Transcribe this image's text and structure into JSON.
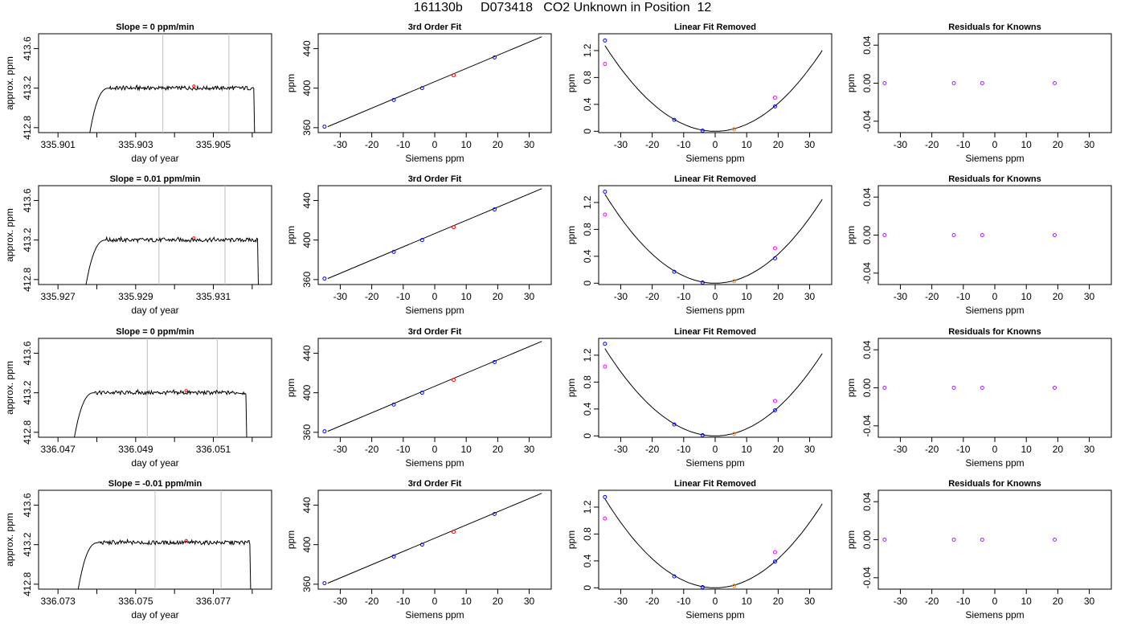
{
  "figure_title": "161130b     D073418   CO2 Unknown in Position  12",
  "colors": {
    "line": "#000000",
    "vertical_marker": "#bebebe",
    "known_point": "#0000ff",
    "unknown_point": "#ff0000",
    "unknown_point_residual": "#ff7f00",
    "raw_point": "#ff00ff",
    "residual_point": "#a020f0"
  },
  "chart_data": [
    {
      "type": "line",
      "row": 1,
      "title": "Slope =  0  ppm/min",
      "xlabel": "day of year",
      "ylabel": "approx. ppm",
      "x_ticks": [
        "335.901",
        "335.903",
        "335.905"
      ],
      "x_minor_ticks": [
        335.902,
        335.904,
        335.906
      ],
      "y_ticks": [
        "412.8",
        "413.2",
        "413.6"
      ],
      "xlim": [
        335.9005,
        335.9065
      ],
      "ylim": [
        412.75,
        413.75
      ],
      "start": 335.9018,
      "end": 335.9061,
      "plateau": 413.22,
      "vlines": [
        335.9037,
        335.9054
      ],
      "marker": {
        "x": 335.9045,
        "y": 413.22
      }
    },
    {
      "type": "scatter",
      "row": 1,
      "title": "3rd Order Fit",
      "xlabel": "Siemens ppm",
      "ylabel": "ppm",
      "x_ticks": [
        -30,
        -20,
        -10,
        0,
        10,
        20,
        30
      ],
      "y_ticks": [
        360,
        400,
        440
      ],
      "xlim": [
        -37,
        37
      ],
      "ylim": [
        355,
        455
      ],
      "fit_line": [
        [
          -34,
          361
        ],
        [
          34,
          452
        ]
      ],
      "points": [
        {
          "x": -35,
          "y": 361,
          "kind": "known"
        },
        {
          "x": -13,
          "y": 388,
          "kind": "known"
        },
        {
          "x": -4,
          "y": 400,
          "kind": "known"
        },
        {
          "x": 6,
          "y": 413,
          "kind": "unknown"
        },
        {
          "x": 19,
          "y": 431,
          "kind": "known"
        }
      ]
    },
    {
      "type": "scatter",
      "row": 1,
      "title": "Linear Fit Removed",
      "xlabel": "Siemens ppm",
      "ylabel": "ppm",
      "x_ticks": [
        -30,
        -20,
        -10,
        0,
        10,
        20,
        30
      ],
      "y_ticks": [
        0.0,
        0.4,
        0.8,
        1.2
      ],
      "xlim": [
        -37,
        37
      ],
      "ylim": [
        -0.02,
        1.45
      ],
      "curve": {
        "a": 0.00104,
        "h": 0,
        "xmin": -35,
        "xmax": 34
      },
      "points": [
        {
          "x": -35,
          "y": 1.35,
          "kind": "known"
        },
        {
          "x": -35,
          "y": 1.0,
          "kind": "raw"
        },
        {
          "x": -13,
          "y": 0.17,
          "kind": "known"
        },
        {
          "x": -4,
          "y": 0.01,
          "kind": "known"
        },
        {
          "x": 6,
          "y": 0.03,
          "kind": "unknown_residual"
        },
        {
          "x": 19,
          "y": 0.37,
          "kind": "known"
        },
        {
          "x": 19,
          "y": 0.5,
          "kind": "raw"
        }
      ]
    },
    {
      "type": "scatter",
      "row": 1,
      "title": "Residuals for Knowns",
      "xlabel": "Siemens ppm",
      "ylabel": "ppm",
      "x_ticks": [
        -30,
        -20,
        -10,
        0,
        10,
        20,
        30
      ],
      "y_ticks": [
        "-0.04",
        "0.00",
        "0.04"
      ],
      "xlim": [
        -37,
        37
      ],
      "ylim": [
        -0.052,
        0.052
      ],
      "points": [
        {
          "x": -35,
          "y": 0,
          "kind": "residual"
        },
        {
          "x": -13,
          "y": 0,
          "kind": "residual"
        },
        {
          "x": -4,
          "y": 0,
          "kind": "residual"
        },
        {
          "x": 19,
          "y": 0,
          "kind": "residual"
        }
      ]
    },
    {
      "type": "line",
      "row": 2,
      "title": "Slope =  0.01  ppm/min",
      "xlabel": "day of year",
      "ylabel": "approx. ppm",
      "x_ticks": [
        "335.927",
        "335.929",
        "335.931"
      ],
      "x_minor_ticks": [
        335.928,
        335.93,
        335.932
      ],
      "y_ticks": [
        "412.8",
        "413.2",
        "413.6"
      ],
      "xlim": [
        335.9265,
        335.9325
      ],
      "ylim": [
        412.75,
        413.75
      ],
      "start": 335.9277,
      "end": 335.9322,
      "plateau": 413.22,
      "vlines": [
        335.9296,
        335.9313
      ],
      "marker": {
        "x": 335.9305,
        "y": 413.22
      }
    },
    {
      "type": "scatter",
      "row": 2,
      "title": "3rd Order Fit",
      "xlabel": "Siemens ppm",
      "ylabel": "ppm",
      "x_ticks": [
        -30,
        -20,
        -10,
        0,
        10,
        20,
        30
      ],
      "y_ticks": [
        360,
        400,
        440
      ],
      "xlim": [
        -37,
        37
      ],
      "ylim": [
        355,
        455
      ],
      "fit_line": [
        [
          -34,
          361
        ],
        [
          34,
          452
        ]
      ],
      "points": [
        {
          "x": -35,
          "y": 361,
          "kind": "known"
        },
        {
          "x": -13,
          "y": 388,
          "kind": "known"
        },
        {
          "x": -4,
          "y": 400,
          "kind": "known"
        },
        {
          "x": 6,
          "y": 413,
          "kind": "unknown"
        },
        {
          "x": 19,
          "y": 431,
          "kind": "known"
        }
      ]
    },
    {
      "type": "scatter",
      "row": 2,
      "title": "Linear Fit Removed",
      "xlabel": "Siemens ppm",
      "ylabel": "ppm",
      "x_ticks": [
        -30,
        -20,
        -10,
        0,
        10,
        20,
        30
      ],
      "y_ticks": [
        0.0,
        0.4,
        0.8,
        1.2
      ],
      "xlim": [
        -37,
        37
      ],
      "ylim": [
        -0.02,
        1.45
      ],
      "curve": {
        "a": 0.00108,
        "h": 0,
        "xmin": -35,
        "xmax": 34
      },
      "points": [
        {
          "x": -35,
          "y": 1.36,
          "kind": "known"
        },
        {
          "x": -35,
          "y": 1.02,
          "kind": "raw"
        },
        {
          "x": -13,
          "y": 0.17,
          "kind": "known"
        },
        {
          "x": -4,
          "y": 0.01,
          "kind": "known"
        },
        {
          "x": 6,
          "y": 0.03,
          "kind": "unknown_residual"
        },
        {
          "x": 19,
          "y": 0.37,
          "kind": "known"
        },
        {
          "x": 19,
          "y": 0.52,
          "kind": "raw"
        }
      ]
    },
    {
      "type": "scatter",
      "row": 2,
      "title": "Residuals for Knowns",
      "xlabel": "Siemens ppm",
      "ylabel": "ppm",
      "x_ticks": [
        -30,
        -20,
        -10,
        0,
        10,
        20,
        30
      ],
      "y_ticks": [
        "-0.04",
        "0.00",
        "0.04"
      ],
      "xlim": [
        -37,
        37
      ],
      "ylim": [
        -0.052,
        0.052
      ],
      "points": [
        {
          "x": -35,
          "y": 0,
          "kind": "residual"
        },
        {
          "x": -13,
          "y": 0,
          "kind": "residual"
        },
        {
          "x": -4,
          "y": 0,
          "kind": "residual"
        },
        {
          "x": 19,
          "y": 0,
          "kind": "residual"
        }
      ]
    },
    {
      "type": "line",
      "row": 3,
      "title": "Slope =  0  ppm/min",
      "xlabel": "day of year",
      "ylabel": "approx. ppm",
      "x_ticks": [
        "336.047",
        "336.049",
        "336.051"
      ],
      "x_minor_ticks": [
        336.048,
        336.05,
        336.052
      ],
      "y_ticks": [
        "412.8",
        "413.2",
        "413.6"
      ],
      "xlim": [
        336.0465,
        336.0525
      ],
      "ylim": [
        412.75,
        413.75
      ],
      "start": 336.0474,
      "end": 336.0519,
      "plateau": 413.22,
      "vlines": [
        336.0493,
        336.0511
      ],
      "marker": {
        "x": 336.0503,
        "y": 413.22
      }
    },
    {
      "type": "scatter",
      "row": 3,
      "title": "3rd Order Fit",
      "xlabel": "Siemens ppm",
      "ylabel": "ppm",
      "x_ticks": [
        -30,
        -20,
        -10,
        0,
        10,
        20,
        30
      ],
      "y_ticks": [
        360,
        400,
        440
      ],
      "xlim": [
        -37,
        37
      ],
      "ylim": [
        355,
        455
      ],
      "fit_line": [
        [
          -34,
          361
        ],
        [
          34,
          452
        ]
      ],
      "points": [
        {
          "x": -35,
          "y": 361,
          "kind": "known"
        },
        {
          "x": -13,
          "y": 388,
          "kind": "known"
        },
        {
          "x": -4,
          "y": 400,
          "kind": "known"
        },
        {
          "x": 6,
          "y": 413,
          "kind": "unknown"
        },
        {
          "x": 19,
          "y": 431,
          "kind": "known"
        }
      ]
    },
    {
      "type": "scatter",
      "row": 3,
      "title": "Linear Fit Removed",
      "xlabel": "Siemens ppm",
      "ylabel": "ppm",
      "x_ticks": [
        -30,
        -20,
        -10,
        0,
        10,
        20,
        30
      ],
      "y_ticks": [
        0.0,
        0.4,
        0.8,
        1.2
      ],
      "xlim": [
        -37,
        37
      ],
      "ylim": [
        -0.02,
        1.45
      ],
      "curve": {
        "a": 0.00106,
        "h": 0,
        "xmin": -35,
        "xmax": 34
      },
      "points": [
        {
          "x": -35,
          "y": 1.37,
          "kind": "known"
        },
        {
          "x": -35,
          "y": 1.03,
          "kind": "raw"
        },
        {
          "x": -13,
          "y": 0.17,
          "kind": "known"
        },
        {
          "x": -4,
          "y": 0.01,
          "kind": "known"
        },
        {
          "x": 6,
          "y": 0.03,
          "kind": "unknown_residual"
        },
        {
          "x": 19,
          "y": 0.38,
          "kind": "known"
        },
        {
          "x": 19,
          "y": 0.52,
          "kind": "raw"
        }
      ]
    },
    {
      "type": "scatter",
      "row": 3,
      "title": "Residuals for Knowns",
      "xlabel": "Siemens ppm",
      "ylabel": "ppm",
      "x_ticks": [
        -30,
        -20,
        -10,
        0,
        10,
        20,
        30
      ],
      "y_ticks": [
        "-0.04",
        "0.00",
        "0.04"
      ],
      "xlim": [
        -37,
        37
      ],
      "ylim": [
        -0.052,
        0.052
      ],
      "points": [
        {
          "x": -35,
          "y": 0,
          "kind": "residual"
        },
        {
          "x": -13,
          "y": 0,
          "kind": "residual"
        },
        {
          "x": -4,
          "y": 0,
          "kind": "residual"
        },
        {
          "x": 19,
          "y": 0,
          "kind": "residual"
        }
      ]
    },
    {
      "type": "line",
      "row": 4,
      "title": "Slope =  -0.01  ppm/min",
      "xlabel": "day of year",
      "ylabel": "approx. ppm",
      "x_ticks": [
        "336.073",
        "336.075",
        "336.077"
      ],
      "x_minor_ticks": [
        336.074,
        336.076,
        336.078
      ],
      "y_ticks": [
        "412.8",
        "413.2",
        "413.6"
      ],
      "xlim": [
        336.0725,
        336.0785
      ],
      "ylim": [
        412.75,
        413.75
      ],
      "start": 336.0735,
      "end": 336.078,
      "plateau": 413.24,
      "vlines": [
        336.0755,
        336.0772
      ],
      "marker": {
        "x": 336.0763,
        "y": 413.24
      }
    },
    {
      "type": "scatter",
      "row": 4,
      "title": "3rd Order Fit",
      "xlabel": "Siemens ppm",
      "ylabel": "ppm",
      "x_ticks": [
        -30,
        -20,
        -10,
        0,
        10,
        20,
        30
      ],
      "y_ticks": [
        360,
        400,
        440
      ],
      "xlim": [
        -37,
        37
      ],
      "ylim": [
        355,
        455
      ],
      "fit_line": [
        [
          -34,
          361
        ],
        [
          34,
          452
        ]
      ],
      "points": [
        {
          "x": -35,
          "y": 361,
          "kind": "known"
        },
        {
          "x": -13,
          "y": 388,
          "kind": "known"
        },
        {
          "x": -4,
          "y": 400,
          "kind": "known"
        },
        {
          "x": 6,
          "y": 413,
          "kind": "unknown"
        },
        {
          "x": 19,
          "y": 431,
          "kind": "known"
        }
      ]
    },
    {
      "type": "scatter",
      "row": 4,
      "title": "Linear Fit Removed",
      "xlabel": "Siemens ppm",
      "ylabel": "ppm",
      "x_ticks": [
        -30,
        -20,
        -10,
        0,
        10,
        20,
        30
      ],
      "y_ticks": [
        0.0,
        0.4,
        0.8,
        1.2
      ],
      "xlim": [
        -37,
        37
      ],
      "ylim": [
        -0.02,
        1.45
      ],
      "curve": {
        "a": 0.00108,
        "h": 0,
        "xmin": -35,
        "xmax": 34
      },
      "points": [
        {
          "x": -35,
          "y": 1.35,
          "kind": "known"
        },
        {
          "x": -35,
          "y": 1.03,
          "kind": "raw"
        },
        {
          "x": -13,
          "y": 0.17,
          "kind": "known"
        },
        {
          "x": -4,
          "y": 0.01,
          "kind": "known"
        },
        {
          "x": 6,
          "y": 0.03,
          "kind": "unknown_residual"
        },
        {
          "x": 19,
          "y": 0.39,
          "kind": "known"
        },
        {
          "x": 19,
          "y": 0.53,
          "kind": "raw"
        }
      ]
    },
    {
      "type": "scatter",
      "row": 4,
      "title": "Residuals for Knowns",
      "xlabel": "Siemens ppm",
      "ylabel": "ppm",
      "x_ticks": [
        -30,
        -20,
        -10,
        0,
        10,
        20,
        30
      ],
      "y_ticks": [
        "-0.04",
        "0.00",
        "0.04"
      ],
      "xlim": [
        -37,
        37
      ],
      "ylim": [
        -0.052,
        0.052
      ],
      "points": [
        {
          "x": -35,
          "y": 0,
          "kind": "residual"
        },
        {
          "x": -13,
          "y": 0,
          "kind": "residual"
        },
        {
          "x": -4,
          "y": 0,
          "kind": "residual"
        },
        {
          "x": 19,
          "y": 0,
          "kind": "residual"
        }
      ]
    }
  ]
}
